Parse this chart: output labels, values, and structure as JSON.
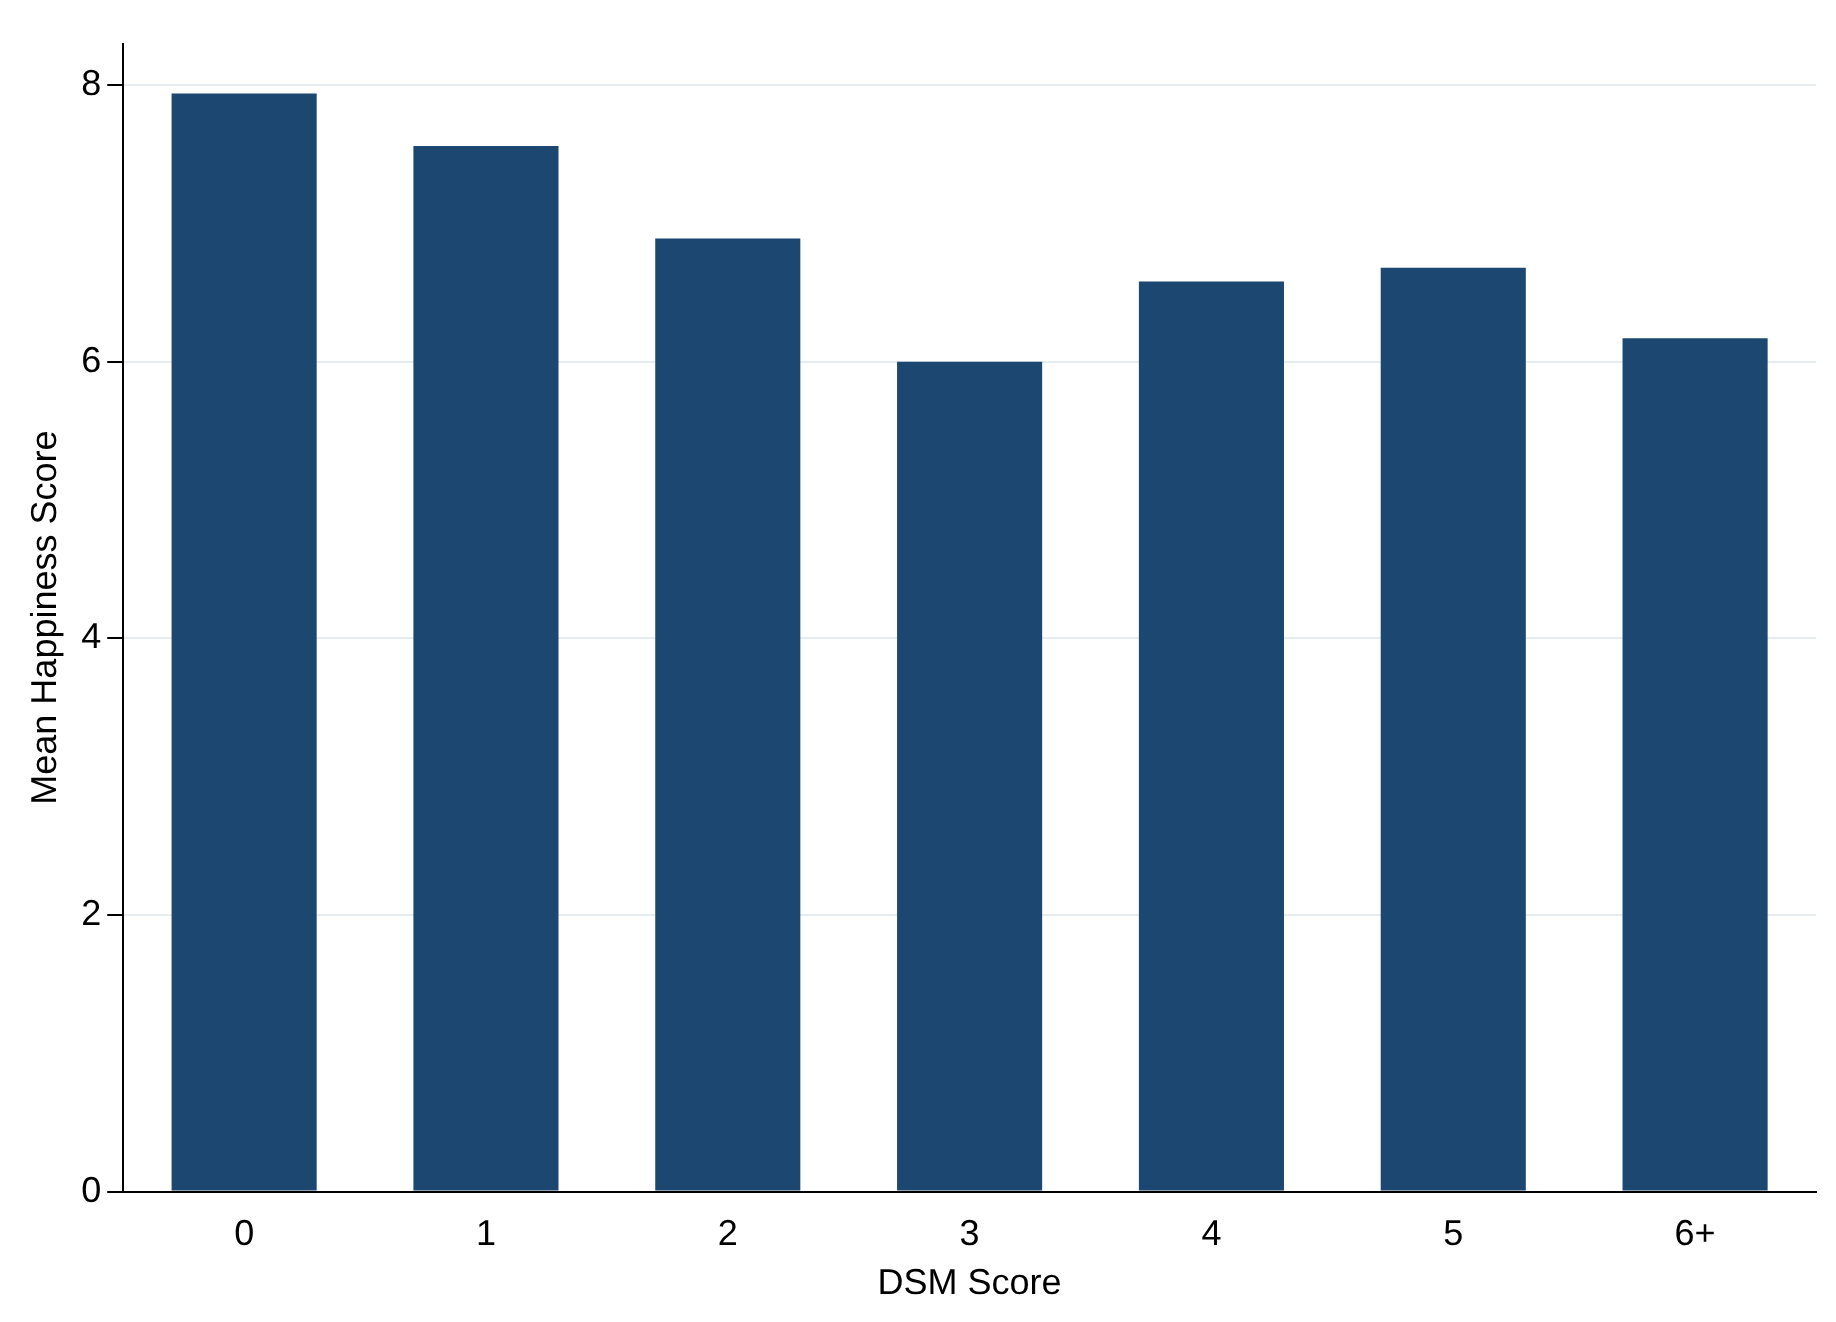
{
  "chart_data": {
    "type": "bar",
    "xlabel": "DSM Score",
    "ylabel": "Mean Happiness Score",
    "categories": [
      "0",
      "1",
      "2",
      "3",
      "4",
      "5",
      "6+"
    ],
    "values": [
      7.94,
      7.56,
      6.89,
      6.0,
      6.58,
      6.68,
      6.17
    ],
    "color": "#1c4770",
    "ylim": [
      0,
      8.3
    ],
    "yticks": [
      0,
      2,
      4,
      6,
      8
    ],
    "grid": "y",
    "legend": false
  }
}
